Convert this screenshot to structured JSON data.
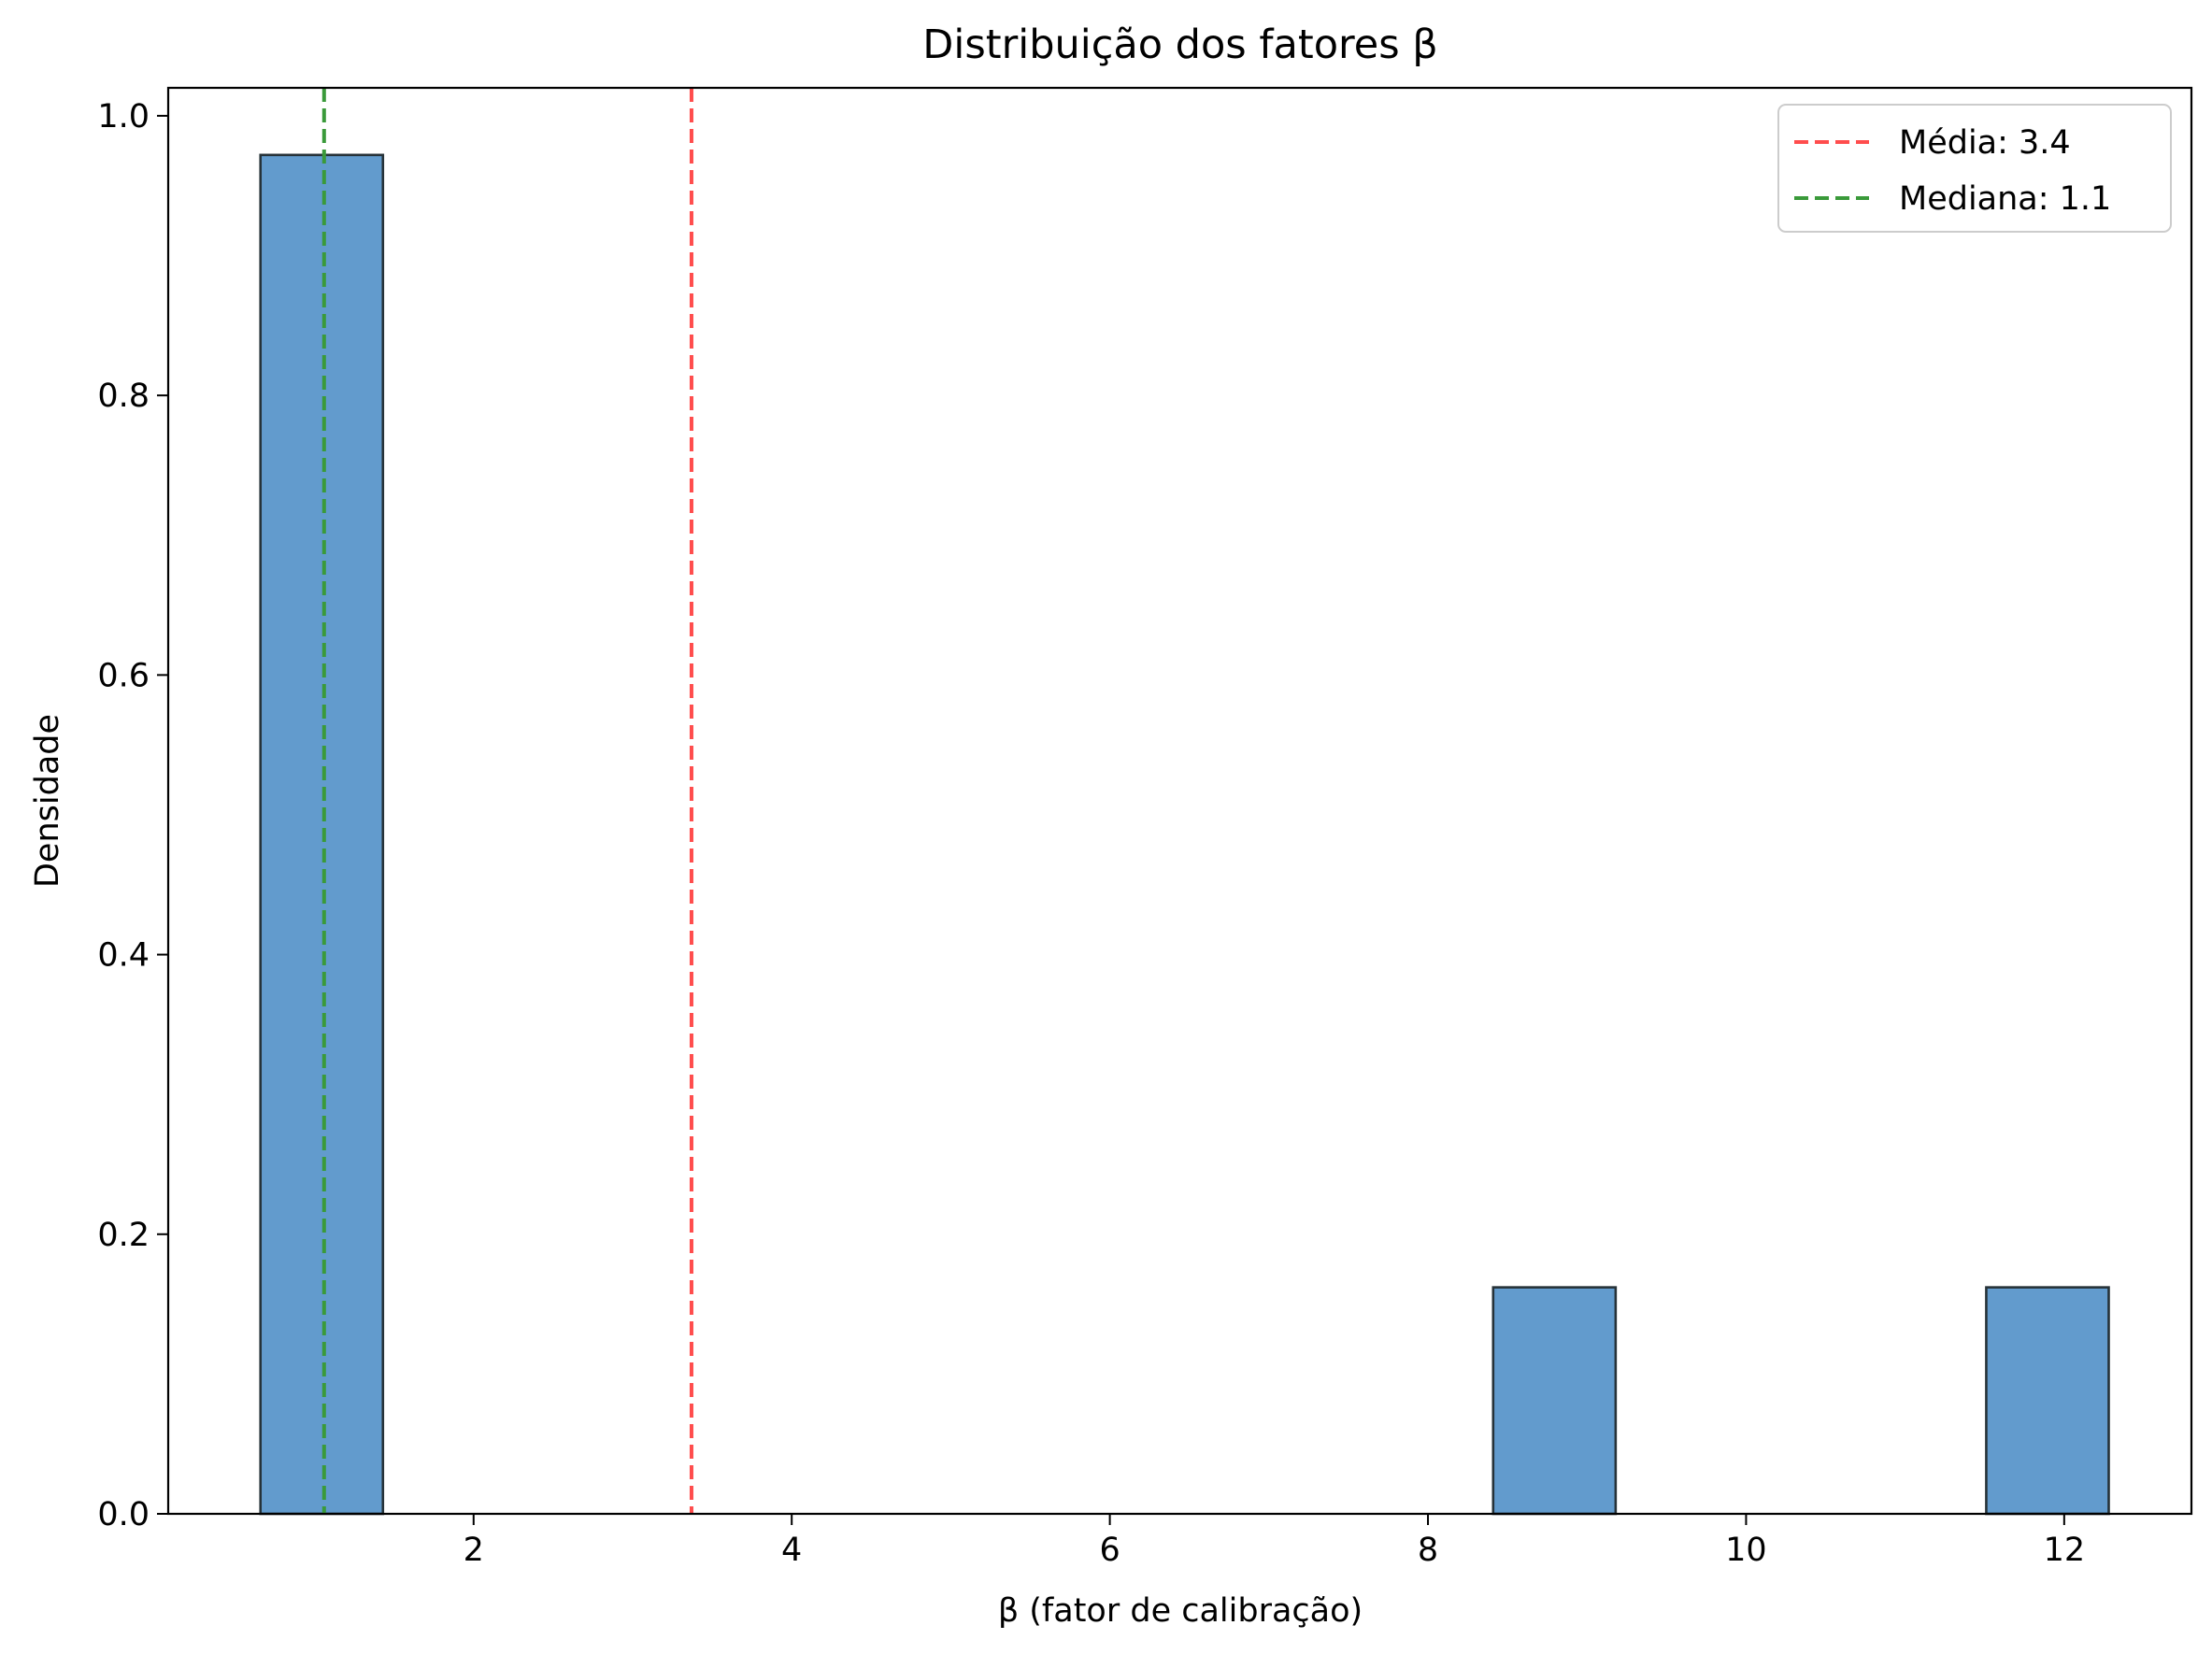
{
  "chart_data": {
    "type": "bar",
    "title": "Distribuição dos fatores β",
    "xlabel": "β (fator de calibração)",
    "ylabel": "Densidade",
    "xlim": [
      0.08,
      12.8
    ],
    "ylim": [
      0.0,
      1.02
    ],
    "xticks": [
      2,
      4,
      6,
      8,
      10,
      12
    ],
    "xtick_labels": [
      "2",
      "4",
      "6",
      "8",
      "10",
      "12"
    ],
    "yticks": [
      0.0,
      0.2,
      0.4,
      0.6,
      0.8,
      1.0
    ],
    "ytick_labels": [
      "0.0",
      "0.2",
      "0.4",
      "0.6",
      "0.8",
      "1.0"
    ],
    "grid": false,
    "bars": [
      {
        "x0": 0.66,
        "x1": 1.43,
        "height": 0.972
      },
      {
        "x0": 8.41,
        "x1": 9.18,
        "height": 0.162
      },
      {
        "x0": 11.51,
        "x1": 12.28,
        "height": 0.162
      }
    ],
    "bar_color": "#3b82c0",
    "bar_opacity": 0.8,
    "bar_edge_color": "#263238",
    "reference_lines": [
      {
        "label": "Média: 3.4",
        "x": 3.37,
        "color": "#ff4d4d",
        "style": "dashed"
      },
      {
        "label": "Mediana: 1.1",
        "x": 1.06,
        "color": "#3a9a3a",
        "style": "dashed"
      }
    ],
    "legend": {
      "position": "top-right",
      "entries": [
        "Média: 3.4",
        "Mediana: 1.1"
      ]
    }
  }
}
